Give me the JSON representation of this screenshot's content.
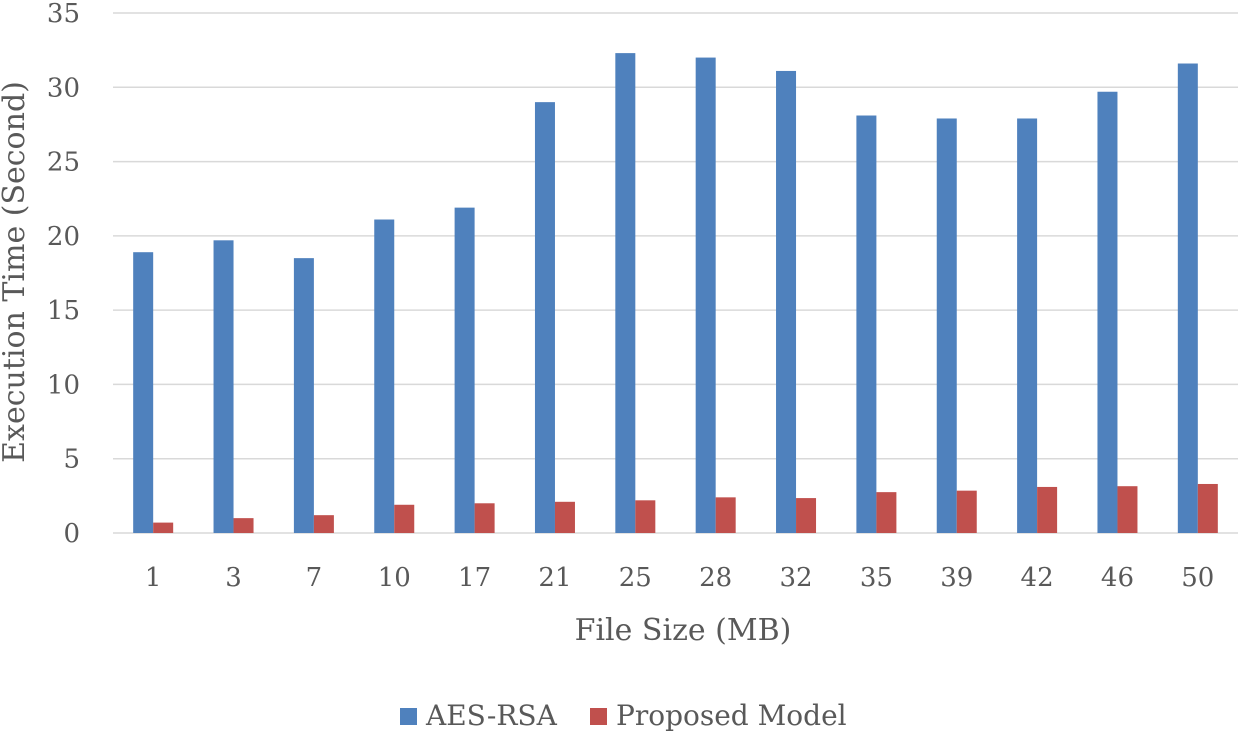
{
  "chart_data": {
    "type": "bar",
    "title": "",
    "xlabel": "File Size (MB)",
    "ylabel": "Execution Time (Second)",
    "ylim": [
      0,
      35
    ],
    "yticks": [
      0,
      5,
      10,
      15,
      20,
      25,
      30,
      35
    ],
    "grid": true,
    "legend_position": "bottom",
    "categories": [
      "1",
      "3",
      "7",
      "10",
      "17",
      "21",
      "25",
      "28",
      "32",
      "35",
      "39",
      "42",
      "46",
      "50"
    ],
    "series": [
      {
        "name": "AES-RSA",
        "color": "#4f81bd",
        "values": [
          18.9,
          19.7,
          18.5,
          21.1,
          21.9,
          29.0,
          32.3,
          32.0,
          31.1,
          28.1,
          27.9,
          27.9,
          29.7,
          31.6
        ]
      },
      {
        "name": "Proposed Model",
        "color": "#c0504d",
        "values": [
          0.7,
          1.0,
          1.2,
          1.9,
          2.0,
          2.1,
          2.2,
          2.4,
          2.35,
          2.75,
          2.85,
          3.1,
          3.15,
          3.3
        ]
      }
    ]
  }
}
